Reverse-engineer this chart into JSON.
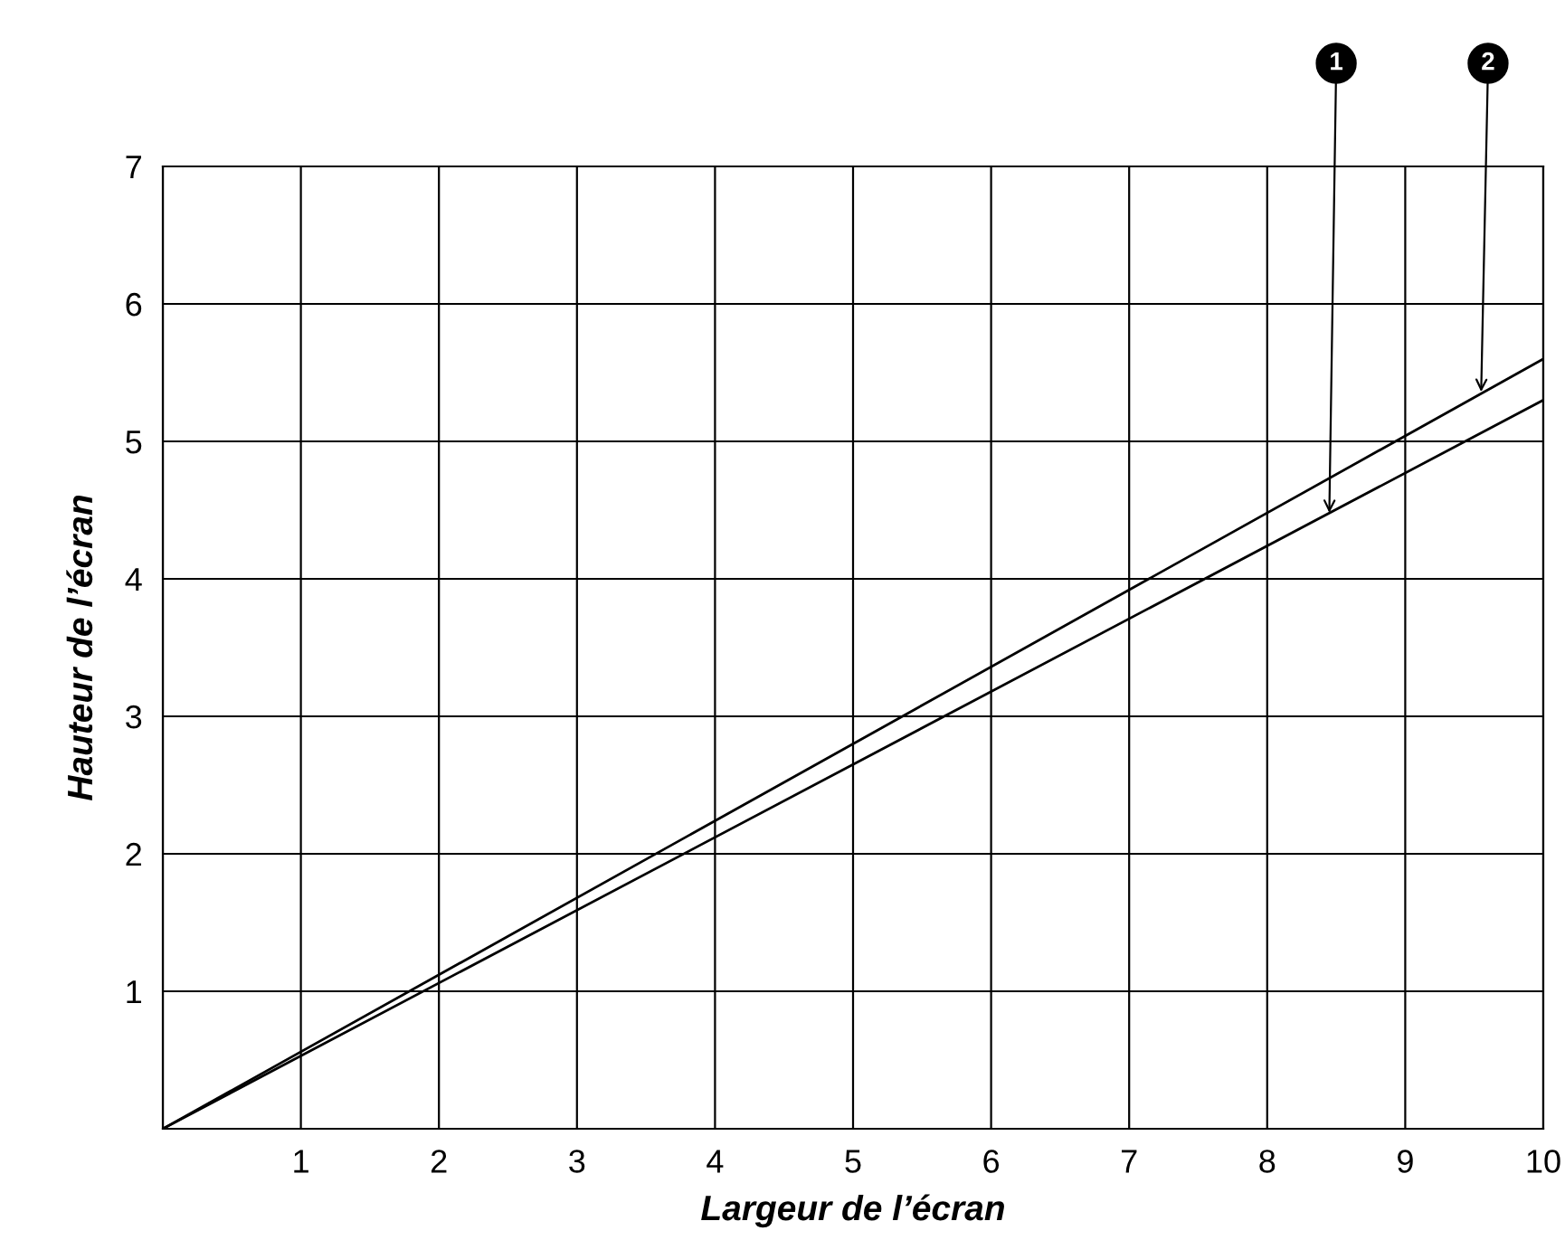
{
  "chart_data": {
    "type": "line",
    "xlabel": "Largeur de l’écran",
    "ylabel": "Hauteur de l’écran",
    "series": [
      {
        "color": "#000000",
        "values": [
          0,
          5.3
        ]
      },
      {
        "color": "#000000",
        "values": [
          0,
          5.6
        ]
      }
    ],
    "x": [
      0,
      10
    ],
    "xlim": [
      0,
      10
    ],
    "ylim": [
      0,
      7
    ],
    "xticks": [
      {
        "value": 0,
        "label": null
      },
      1,
      2,
      3,
      4,
      5,
      6,
      7,
      8,
      9,
      10
    ],
    "yticks": [
      {
        "value": 0,
        "label": null
      },
      1,
      2,
      3,
      4,
      5,
      6,
      7
    ],
    "grid": true,
    "marker": "none",
    "line_style": "solid",
    "annotations": [
      {
        "text": "1",
        "x": 8.45,
        "y": 4.48
      },
      {
        "text": "2",
        "x": 9.55,
        "y": 5.36
      }
    ]
  }
}
